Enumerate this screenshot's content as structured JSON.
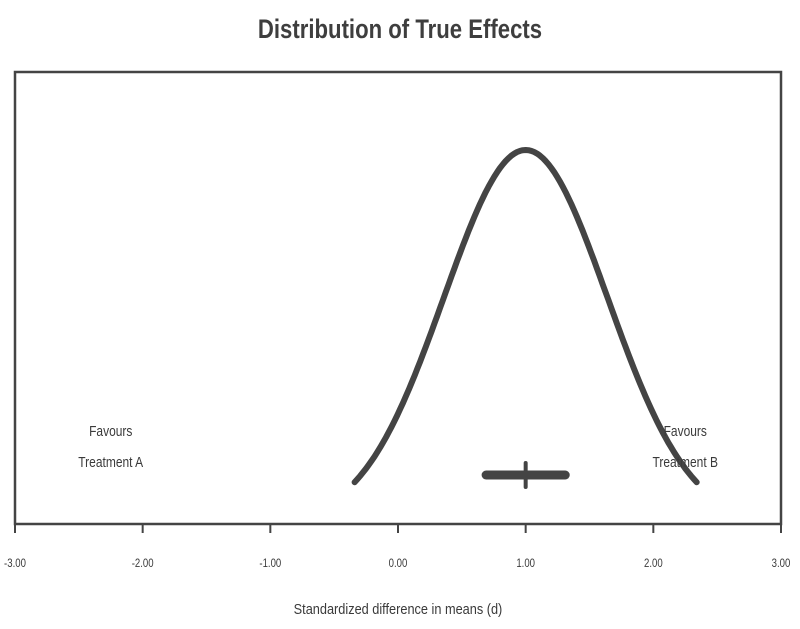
{
  "chart_data": {
    "type": "line",
    "title": "Distribution of True Effects",
    "xlabel": "Standardized difference in means (d)",
    "ylabel": "",
    "xlim": [
      -3.0,
      3.0
    ],
    "x_ticks": [
      "-3.00",
      "-2.00",
      "-1.00",
      "0.00",
      "1.00",
      "2.00",
      "3.00"
    ],
    "grid": false,
    "legend": null,
    "series": [
      {
        "name": "Distribution of true effects",
        "kind": "normal-curve",
        "mean": 1.0,
        "sd": 0.64,
        "x_range": [
          -0.34,
          2.34
        ]
      }
    ],
    "summary_interval": {
      "point": 1.0,
      "lower": 0.69,
      "upper": 1.31
    },
    "annotations": [
      {
        "text_line1": "Favours",
        "text_line2": "Treatment A",
        "x": -2.25
      },
      {
        "text_line1": "Favours",
        "text_line2": "Treatment B",
        "x": 2.25
      }
    ]
  },
  "colors": {
    "line": "#444444",
    "axis": "#444444",
    "text": "#3a3a3a"
  }
}
